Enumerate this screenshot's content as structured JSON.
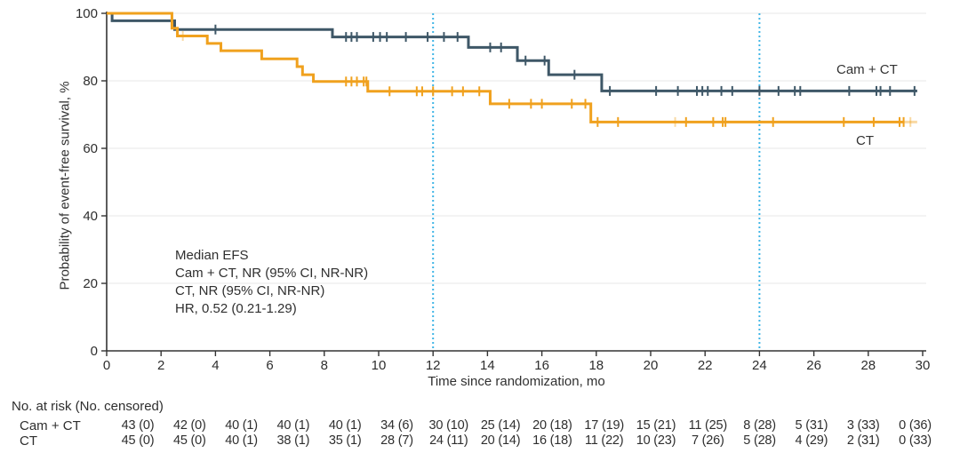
{
  "chart_data": {
    "type": "line",
    "subtype": "kaplan-meier-step",
    "title": "",
    "xlabel": "Time since randomization, mo",
    "ylabel": "Probability of event-free survival, %",
    "xlim": [
      0,
      30
    ],
    "ylim": [
      0,
      100
    ],
    "x_ticks": [
      0,
      2,
      4,
      6,
      8,
      10,
      12,
      14,
      16,
      18,
      20,
      22,
      24,
      26,
      28,
      30
    ],
    "y_ticks": [
      0,
      20,
      40,
      60,
      80,
      100
    ],
    "grid": "horizontal-light",
    "reference_lines_x": [
      12,
      24
    ],
    "reference_line_color": "#41b6e6",
    "annotation": {
      "lines": [
        "Median EFS",
        "Cam + CT, NR (95% CI, NR-NR)",
        "CT, NR (95% CI, NR-NR)",
        "HR, 0.52 (0.21-1.29)"
      ]
    },
    "series": [
      {
        "name": "Cam + CT",
        "plot_label": "Cam + CT",
        "color": "#3e5767",
        "steps": [
          [
            0,
            100
          ],
          [
            0.2,
            97.8
          ],
          [
            2.5,
            95.2
          ],
          [
            8.3,
            93.0
          ],
          [
            13.3,
            89.9
          ],
          [
            15.1,
            86.0
          ],
          [
            16.25,
            81.8
          ],
          [
            18.2,
            77.0
          ]
        ],
        "end_t": 29.8,
        "censors": [
          [
            4.0,
            95.2
          ],
          [
            8.8,
            93.0
          ],
          [
            9.0,
            93.0
          ],
          [
            9.2,
            93.0
          ],
          [
            9.8,
            93.0
          ],
          [
            10.05,
            93.0
          ],
          [
            10.3,
            93.0
          ],
          [
            11.0,
            93.0
          ],
          [
            11.8,
            93.0
          ],
          [
            12.4,
            93.0
          ],
          [
            12.9,
            93.0
          ],
          [
            14.1,
            89.9
          ],
          [
            14.5,
            89.9
          ],
          [
            15.4,
            86.0
          ],
          [
            16.1,
            86.0
          ],
          [
            17.2,
            81.8
          ],
          [
            18.5,
            77.0
          ],
          [
            20.2,
            77.0
          ],
          [
            21.0,
            77.0
          ],
          [
            21.7,
            77.0
          ],
          [
            21.9,
            77.0
          ],
          [
            22.1,
            77.0
          ],
          [
            22.6,
            77.0
          ],
          [
            23.0,
            77.0
          ],
          [
            24.0,
            77.0
          ],
          [
            24.7,
            77.0
          ],
          [
            25.3,
            77.0
          ],
          [
            25.5,
            77.0
          ],
          [
            27.3,
            77.0
          ],
          [
            28.3,
            77.0
          ],
          [
            28.45,
            77.0
          ],
          [
            28.8,
            77.0
          ],
          [
            29.7,
            77.0
          ]
        ],
        "light_censors": [],
        "faint_end_t": null
      },
      {
        "name": "CT",
        "plot_label": "CT",
        "color": "#f0a11e",
        "steps": [
          [
            0,
            100
          ],
          [
            2.4,
            95.6
          ],
          [
            2.6,
            93.3
          ],
          [
            3.7,
            91.1
          ],
          [
            4.2,
            88.9
          ],
          [
            5.7,
            86.5
          ],
          [
            7.0,
            84.2
          ],
          [
            7.2,
            81.8
          ],
          [
            7.6,
            79.8
          ],
          [
            9.6,
            76.9
          ],
          [
            14.1,
            73.2
          ],
          [
            17.8,
            67.8
          ]
        ],
        "end_t": 29.3,
        "censors": [
          [
            8.8,
            79.8
          ],
          [
            9.0,
            79.8
          ],
          [
            9.2,
            79.8
          ],
          [
            9.45,
            79.8
          ],
          [
            9.55,
            79.8
          ],
          [
            10.4,
            76.9
          ],
          [
            11.4,
            76.9
          ],
          [
            11.6,
            76.9
          ],
          [
            12.0,
            76.9
          ],
          [
            12.7,
            76.9
          ],
          [
            13.1,
            76.9
          ],
          [
            13.7,
            76.9
          ],
          [
            14.8,
            73.2
          ],
          [
            15.6,
            73.2
          ],
          [
            16.0,
            73.2
          ],
          [
            17.1,
            73.2
          ],
          [
            17.6,
            73.2
          ],
          [
            18.05,
            67.8
          ],
          [
            18.8,
            67.8
          ],
          [
            21.3,
            67.8
          ],
          [
            22.3,
            67.8
          ],
          [
            22.65,
            67.8
          ],
          [
            22.75,
            67.8
          ],
          [
            24.5,
            67.8
          ],
          [
            27.1,
            67.8
          ],
          [
            28.2,
            67.8
          ],
          [
            29.15,
            67.8
          ],
          [
            29.3,
            67.8
          ]
        ],
        "light_censors": [
          [
            2.8,
            93.3
          ],
          [
            20.9,
            67.8
          ],
          [
            29.55,
            67.8
          ]
        ],
        "faint_end_t": 29.8
      }
    ],
    "risk_table": {
      "header": "No. at risk (No. censored)",
      "time_points": [
        0,
        2,
        4,
        6,
        8,
        10,
        12,
        14,
        16,
        18,
        20,
        22,
        24,
        26,
        28,
        30
      ],
      "rows": [
        {
          "label": "Cam + CT",
          "values": [
            "43 (0)",
            "42 (0)",
            "40 (1)",
            "40 (1)",
            "40 (1)",
            "34 (6)",
            "30 (10)",
            "25 (14)",
            "20 (18)",
            "17 (19)",
            "15 (21)",
            "11 (25)",
            "8 (28)",
            "5 (31)",
            "3 (33)",
            "0 (36)"
          ]
        },
        {
          "label": "CT",
          "values": [
            "45 (0)",
            "45 (0)",
            "40 (1)",
            "38 (1)",
            "35 (1)",
            "28 (7)",
            "24 (11)",
            "20 (14)",
            "16 (18)",
            "11 (22)",
            "10 (23)",
            "7 (26)",
            "5 (28)",
            "4 (29)",
            "2 (31)",
            "0 (33)"
          ]
        }
      ]
    },
    "colors": {
      "cam_ct": "#3e5767",
      "ct": "#f0a11e",
      "reference_dotted": "#41b6e6",
      "gridline": "#ececec",
      "axis": "#333333",
      "text": "#2e2e2e"
    }
  }
}
